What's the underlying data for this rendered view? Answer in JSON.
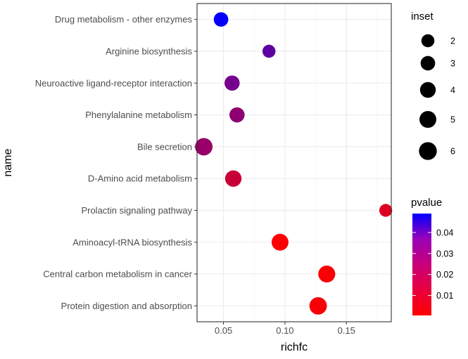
{
  "chart_data": {
    "type": "scatter",
    "title": "",
    "xlabel": "richfc",
    "ylabel": "name",
    "xlim": [
      0.0285,
      0.1865
    ],
    "x_ticks": [
      0.05,
      0.1,
      0.15
    ],
    "x_tick_labels": [
      "0.05",
      "0.10",
      "0.15"
    ],
    "grid": true,
    "categories": [
      "Drug metabolism - other enzymes",
      "Arginine biosynthesis",
      "Neuroactive ligand-receptor interaction",
      "Phenylalanine metabolism",
      "Bile secretion",
      "D-Amino acid metabolism",
      "Prolactin signaling pathway",
      "Aminoacyl-tRNA biosynthesis",
      "Central carbon metabolism in cancer",
      "Protein digestion and absorption"
    ],
    "points": [
      {
        "name": "Drug metabolism - other enzymes",
        "richfc": 0.048,
        "inset": 3,
        "pvalue": 0.048
      },
      {
        "name": "Arginine biosynthesis",
        "richfc": 0.087,
        "inset": 2,
        "pvalue": 0.031
      },
      {
        "name": "Neuroactive ligand-receptor interaction",
        "richfc": 0.057,
        "inset": 3.5,
        "pvalue": 0.027
      },
      {
        "name": "Phenylalanine metabolism",
        "richfc": 0.061,
        "inset": 3.5,
        "pvalue": 0.022
      },
      {
        "name": "Bile secretion",
        "richfc": 0.034,
        "inset": 5.6,
        "pvalue": 0.02
      },
      {
        "name": "D-Amino acid metabolism",
        "richfc": 0.058,
        "inset": 4.6,
        "pvalue": 0.011
      },
      {
        "name": "Prolactin signaling pathway",
        "richfc": 0.182,
        "inset": 1.9,
        "pvalue": 0.007
      },
      {
        "name": "Aminoacyl-tRNA biosynthesis",
        "richfc": 0.096,
        "inset": 5.0,
        "pvalue": 0.001
      },
      {
        "name": "Central carbon metabolism in cancer",
        "richfc": 0.134,
        "inset": 5.1,
        "pvalue": 0.0015
      },
      {
        "name": "Protein digestion and absorption",
        "richfc": 0.127,
        "inset": 5.6,
        "pvalue": 0.002
      }
    ],
    "size_legend": {
      "title": "inset",
      "values": [
        2,
        3,
        4,
        5,
        6
      ],
      "labels": [
        "2",
        "3",
        "4",
        "5",
        "6"
      ]
    },
    "color_legend": {
      "title": "pvalue",
      "range": [
        0.0005,
        0.049
      ],
      "ticks": [
        0.01,
        0.02,
        0.03,
        0.04
      ],
      "tick_labels": [
        "0.01",
        "0.02",
        "0.03",
        "0.04"
      ],
      "low_color": "#ff0000",
      "high_color": "#0000ff"
    }
  },
  "colors": {
    "panel_border": "#333333",
    "grid_major": "#ebebeb",
    "grid_minor": "#f5f5f5",
    "tick_text": "#4d4d4d"
  }
}
